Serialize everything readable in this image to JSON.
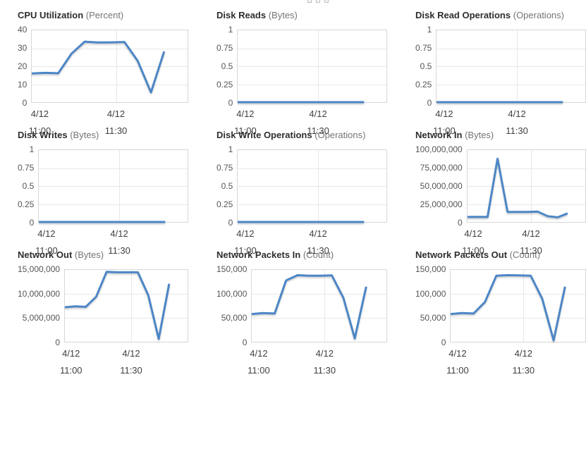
{
  "header": {
    "dots_count": 3
  },
  "chart_layout": {
    "x_span_pct": 85,
    "vgrid_pct": 54,
    "grid": true,
    "legend": "none"
  },
  "style": {
    "line_color": "#4c86c6",
    "grid_color": "#e8e8e8",
    "border_color": "#d7d7d7",
    "title_color": "#2d2d2d",
    "unit_color": "#757575",
    "tick_color": "#555555"
  },
  "chart_data": [
    {
      "type": "line",
      "title": "CPU Utilization",
      "unit": "(Percent)",
      "ylabel": "Percent",
      "ylim": [
        0,
        40
      ],
      "yticks": [
        "40",
        "30",
        "20",
        "10",
        "0"
      ],
      "x_axis_labels": [
        {
          "date": "4/12",
          "time": "11:00"
        },
        {
          "date": "4/12",
          "time": "11:30"
        }
      ],
      "values": [
        16,
        16.3,
        16.1,
        27,
        33.7,
        33.2,
        33.3,
        33.5,
        23,
        5.5,
        28.2
      ]
    },
    {
      "type": "line",
      "title": "Disk Reads",
      "unit": "(Bytes)",
      "ylabel": "Bytes",
      "ylim": [
        0,
        1
      ],
      "yticks": [
        "1",
        "0.75",
        "0.5",
        "0.25",
        "0"
      ],
      "x_axis_labels": [
        {
          "date": "4/12",
          "time": "11:00"
        },
        {
          "date": "4/12",
          "time": "11:30"
        }
      ],
      "values": [
        0,
        0,
        0,
        0,
        0,
        0,
        0,
        0,
        0,
        0,
        0
      ]
    },
    {
      "type": "line",
      "title": "Disk Read Operations",
      "unit": "(Operations)",
      "ylabel": "Operations",
      "ylim": [
        0,
        1
      ],
      "yticks": [
        "1",
        "0.75",
        "0.5",
        "0.25",
        "0"
      ],
      "x_axis_labels": [
        {
          "date": "4/12",
          "time": "11:00"
        },
        {
          "date": "4/12",
          "time": "11:30"
        }
      ],
      "values": [
        0,
        0,
        0,
        0,
        0,
        0,
        0,
        0,
        0,
        0,
        0
      ]
    },
    {
      "type": "line",
      "title": "Disk Writes",
      "unit": "(Bytes)",
      "ylabel": "Bytes",
      "ylim": [
        0,
        1
      ],
      "yticks": [
        "1",
        "0.75",
        "0.5",
        "0.25",
        "0"
      ],
      "x_axis_labels": [
        {
          "date": "4/12",
          "time": "11:00"
        },
        {
          "date": "4/12",
          "time": "11:30"
        }
      ],
      "values": [
        0,
        0,
        0,
        0,
        0,
        0,
        0,
        0,
        0,
        0,
        0
      ]
    },
    {
      "type": "line",
      "title": "Disk Write Operations",
      "unit": "(Operations)",
      "ylabel": "Operations",
      "ylim": [
        0,
        1
      ],
      "yticks": [
        "1",
        "0.75",
        "0.5",
        "0.25",
        "0"
      ],
      "x_axis_labels": [
        {
          "date": "4/12",
          "time": "11:00"
        },
        {
          "date": "4/12",
          "time": "11:30"
        }
      ],
      "values": [
        0,
        0,
        0,
        0,
        0,
        0,
        0,
        0,
        0,
        0,
        0
      ]
    },
    {
      "type": "line",
      "title": "Network In",
      "unit": "(Bytes)",
      "ylabel": "Bytes",
      "ylim": [
        0,
        100000000
      ],
      "yticks": [
        "100,000,000",
        "75,000,000",
        "50,000,000",
        "25,000,000",
        "0"
      ],
      "x_axis_labels": [
        {
          "date": "4/12",
          "time": "11:00"
        },
        {
          "date": "4/12",
          "time": "11:30"
        }
      ],
      "values": [
        7000000,
        7200000,
        7000000,
        88000000,
        14000000,
        14000000,
        14000000,
        14500000,
        8000000,
        6500000,
        12000000
      ]
    },
    {
      "type": "line",
      "title": "Network Out",
      "unit": "(Bytes)",
      "ylabel": "Bytes",
      "ylim": [
        0,
        15000000
      ],
      "yticks": [
        "15,000,000",
        "10,000,000",
        "5,000,000",
        "0"
      ],
      "x_axis_labels": [
        {
          "date": "4/12",
          "time": "11:00"
        },
        {
          "date": "4/12",
          "time": "11:30"
        }
      ],
      "values": [
        7200000,
        7400000,
        7300000,
        9400000,
        14600000,
        14500000,
        14500000,
        14500000,
        9700000,
        600000,
        12100000
      ]
    },
    {
      "type": "line",
      "title": "Network Packets In",
      "unit": "(Count)",
      "ylabel": "Count",
      "ylim": [
        0,
        150000
      ],
      "yticks": [
        "150,000",
        "100,000",
        "50,000",
        "0"
      ],
      "x_axis_labels": [
        {
          "date": "4/12",
          "time": "11:00"
        },
        {
          "date": "4/12",
          "time": "11:30"
        }
      ],
      "values": [
        58000,
        60000,
        59000,
        128000,
        139000,
        138000,
        138000,
        138500,
        92000,
        7000,
        115000
      ]
    },
    {
      "type": "line",
      "title": "Network Packets Out",
      "unit": "(Count)",
      "ylabel": "Count",
      "ylim": [
        0,
        150000
      ],
      "yticks": [
        "150,000",
        "100,000",
        "50,000",
        "0"
      ],
      "x_axis_labels": [
        {
          "date": "4/12",
          "time": "11:00"
        },
        {
          "date": "4/12",
          "time": "11:30"
        }
      ],
      "values": [
        58000,
        60000,
        59000,
        83000,
        138000,
        139000,
        138500,
        138000,
        90000,
        3000,
        115000
      ]
    }
  ]
}
